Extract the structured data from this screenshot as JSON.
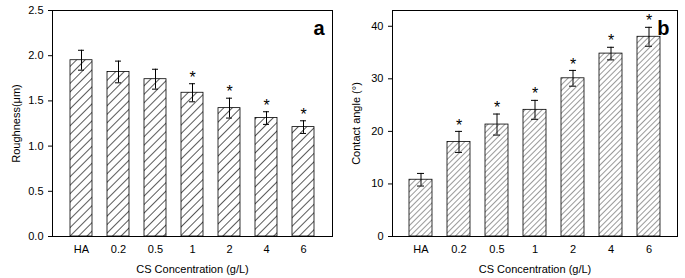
{
  "chart_data": [
    {
      "type": "bar",
      "panel": "a",
      "categories": [
        "HA",
        "0.2",
        "0.5",
        "1",
        "2",
        "4",
        "6"
      ],
      "values": [
        1.95,
        1.82,
        1.74,
        1.59,
        1.42,
        1.31,
        1.21
      ],
      "errors": [
        0.11,
        0.12,
        0.11,
        0.1,
        0.11,
        0.07,
        0.07
      ],
      "significance": [
        null,
        null,
        null,
        "*",
        "*",
        "*",
        "*"
      ],
      "color": "#000000",
      "x_label": "CS Concentration (g/L)",
      "y_label": "Roughness(μm)",
      "ylim": [
        0,
        2.5
      ],
      "yticks": [
        {
          "value": 0,
          "label": "0.0"
        },
        {
          "value": 0.5,
          "label": "0.5"
        },
        {
          "value": 1,
          "label": "1.0"
        },
        {
          "value": 1.5,
          "label": "1.5"
        },
        {
          "value": 2,
          "label": "2.0"
        },
        {
          "value": 2.5,
          "label": "2.5"
        }
      ]
    },
    {
      "type": "bar",
      "panel": "b",
      "categories": [
        "HA",
        "0.2",
        "0.5",
        "1",
        "2",
        "4",
        "6"
      ],
      "values": [
        10.8,
        18.0,
        21.3,
        24.1,
        30.1,
        34.8,
        38.0
      ],
      "errors": [
        1.2,
        2.0,
        2.0,
        1.8,
        1.5,
        1.2,
        1.8
      ],
      "significance": [
        null,
        "*",
        "*",
        "*",
        "*",
        "*",
        "*"
      ],
      "color": "#555555",
      "x_label": "CS Concentration (g/L)",
      "y_label": "Contact angle (°)",
      "ylim": [
        0,
        43
      ],
      "yticks": [
        0,
        10,
        20,
        30,
        40
      ]
    }
  ]
}
